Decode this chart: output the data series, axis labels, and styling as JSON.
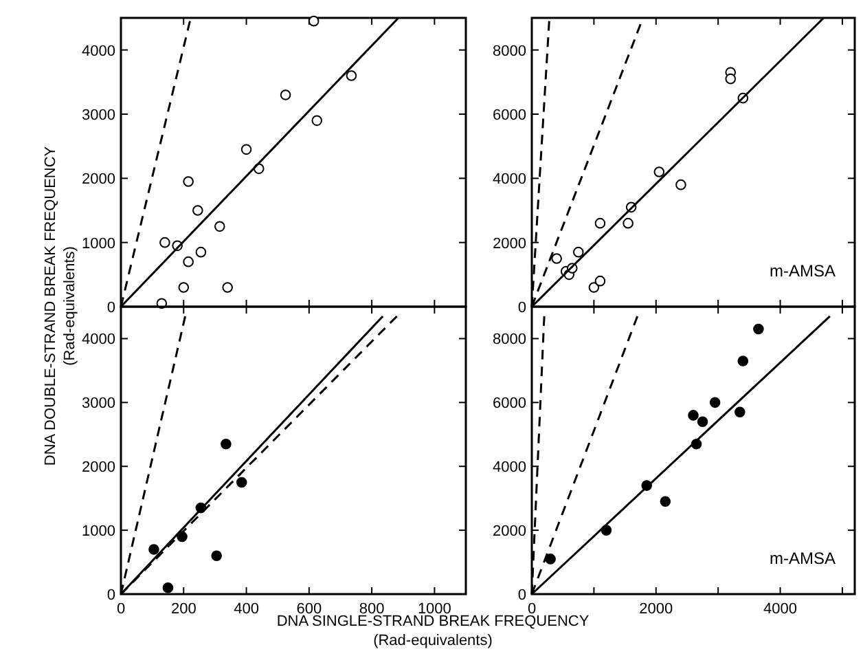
{
  "chart_data": [
    {
      "type": "scatter",
      "ylabel": "DNA DOUBLE-STRAND BREAK FREQUENCY\n(Rad-equivalents)",
      "xlim": [
        0,
        1100
      ],
      "xticks": [
        {
          "value": 0,
          "label": null
        },
        {
          "value": 200,
          "label": null
        },
        {
          "value": 400,
          "label": null
        },
        {
          "value": 600,
          "label": null
        },
        {
          "value": 800,
          "label": null
        },
        {
          "value": 1000,
          "label": null
        }
      ],
      "ylim": [
        0,
        4500
      ],
      "yticks": [
        0,
        1000,
        2000,
        3000,
        4000
      ],
      "tick_labels": "y",
      "marker": "circle",
      "series": [
        {
          "color": "#ffffff",
          "x": [
            130,
            140,
            180,
            215,
            245,
            215,
            255,
            200,
            315,
            340,
            400,
            440,
            525,
            625,
            615,
            735
          ],
          "values": [
            50,
            1000,
            950,
            1950,
            1500,
            700,
            850,
            300,
            1250,
            300,
            2450,
            2150,
            3300,
            2900,
            4450,
            3600
          ]
        },
        {
          "type": "line",
          "marker": "none",
          "color": "#000000",
          "line_style": "solid",
          "x": [
            0,
            885
          ],
          "values": [
            0,
            4500
          ]
        },
        {
          "type": "line",
          "marker": "none",
          "color": "#000000",
          "line_style": "dashed",
          "x": [
            0,
            220
          ],
          "values": [
            0,
            4450
          ]
        }
      ]
    },
    {
      "type": "scatter",
      "annotations": [
        "m-AMSA"
      ],
      "xlim": [
        0,
        5200
      ],
      "xticks": [
        {
          "value": 0,
          "label": null
        },
        {
          "value": 1000,
          "label": null
        },
        {
          "value": 2000,
          "label": null
        },
        {
          "value": 3000,
          "label": null
        },
        {
          "value": 4000,
          "label": null
        },
        {
          "value": 5000,
          "label": null
        }
      ],
      "ylim": [
        0,
        9000
      ],
      "yticks": [
        0,
        2000,
        4000,
        6000,
        8000
      ],
      "tick_labels": "y",
      "marker": "circle",
      "series": [
        {
          "color": "#ffffff",
          "x": [
            400,
            550,
            600,
            650,
            750,
            1000,
            1100,
            1100,
            1550,
            1600,
            2050,
            2400,
            3200,
            3200,
            3400
          ],
          "values": [
            1500,
            1100,
            1000,
            1200,
            1700,
            600,
            800,
            2600,
            2600,
            3100,
            4200,
            3800,
            7300,
            7100,
            6500
          ]
        },
        {
          "type": "line",
          "marker": "none",
          "color": "#000000",
          "line_style": "solid",
          "x": [
            0,
            4700
          ],
          "values": [
            0,
            9000
          ]
        },
        {
          "type": "line",
          "marker": "none",
          "color": "#000000",
          "line_style": "dashed",
          "x": [
            0,
            1750
          ],
          "values": [
            0,
            8800
          ]
        },
        {
          "type": "line",
          "marker": "none",
          "color": "#000000",
          "line_style": "dashed",
          "x": [
            0,
            280
          ],
          "values": [
            0,
            8900
          ]
        }
      ]
    },
    {
      "type": "scatter",
      "xlim": [
        0,
        1100
      ],
      "xticks": [
        0,
        200,
        400,
        600,
        800,
        1000
      ],
      "ylim": [
        0,
        4500
      ],
      "yticks": [
        0,
        1000,
        2000,
        3000,
        4000
      ],
      "marker": "circle",
      "series": [
        {
          "color": "#000000",
          "x": [
            105,
            150,
            195,
            255,
            305,
            335,
            385
          ],
          "values": [
            700,
            100,
            900,
            1350,
            600,
            2350,
            1750
          ]
        },
        {
          "type": "line",
          "marker": "none",
          "color": "#000000",
          "line_style": "solid",
          "x": [
            0,
            835
          ],
          "values": [
            0,
            4350
          ]
        },
        {
          "type": "line",
          "marker": "none",
          "color": "#000000",
          "line_style": "dashed",
          "x": [
            0,
            880
          ],
          "values": [
            0,
            4350
          ]
        },
        {
          "type": "line",
          "marker": "none",
          "color": "#000000",
          "line_style": "dashed",
          "x": [
            0,
            205
          ],
          "values": [
            0,
            4350
          ]
        }
      ]
    },
    {
      "type": "scatter",
      "xlabel": "DNA SINGLE-STRAND BREAK FREQUENCY\n(Rad-equivalents)",
      "annotations": [
        "m-AMSA"
      ],
      "xlim": [
        0,
        5200
      ],
      "xticks": [
        0,
        {
          "value": 1000,
          "label": null
        },
        2000,
        {
          "value": 3000,
          "label": null
        },
        4000,
        {
          "value": 5000,
          "label": null
        }
      ],
      "ylim": [
        0,
        9000
      ],
      "yticks": [
        0,
        2000,
        4000,
        6000,
        8000
      ],
      "marker": "circle",
      "series": [
        {
          "color": "#000000",
          "x": [
            300,
            1200,
            1850,
            2150,
            2600,
            2650,
            2750,
            2950,
            3350,
            3400,
            3650
          ],
          "values": [
            1100,
            2000,
            3400,
            2900,
            5600,
            4700,
            5400,
            6000,
            5700,
            7300,
            8300
          ]
        },
        {
          "type": "line",
          "marker": "none",
          "color": "#000000",
          "line_style": "solid",
          "x": [
            0,
            4800
          ],
          "values": [
            0,
            8700
          ]
        },
        {
          "type": "line",
          "marker": "none",
          "color": "#000000",
          "line_style": "dashed",
          "x": [
            0,
            1700
          ],
          "values": [
            0,
            8700
          ]
        },
        {
          "type": "line",
          "marker": "none",
          "color": "#000000",
          "line_style": "dashed",
          "x": [
            0,
            200
          ],
          "values": [
            0,
            8700
          ]
        }
      ]
    }
  ]
}
